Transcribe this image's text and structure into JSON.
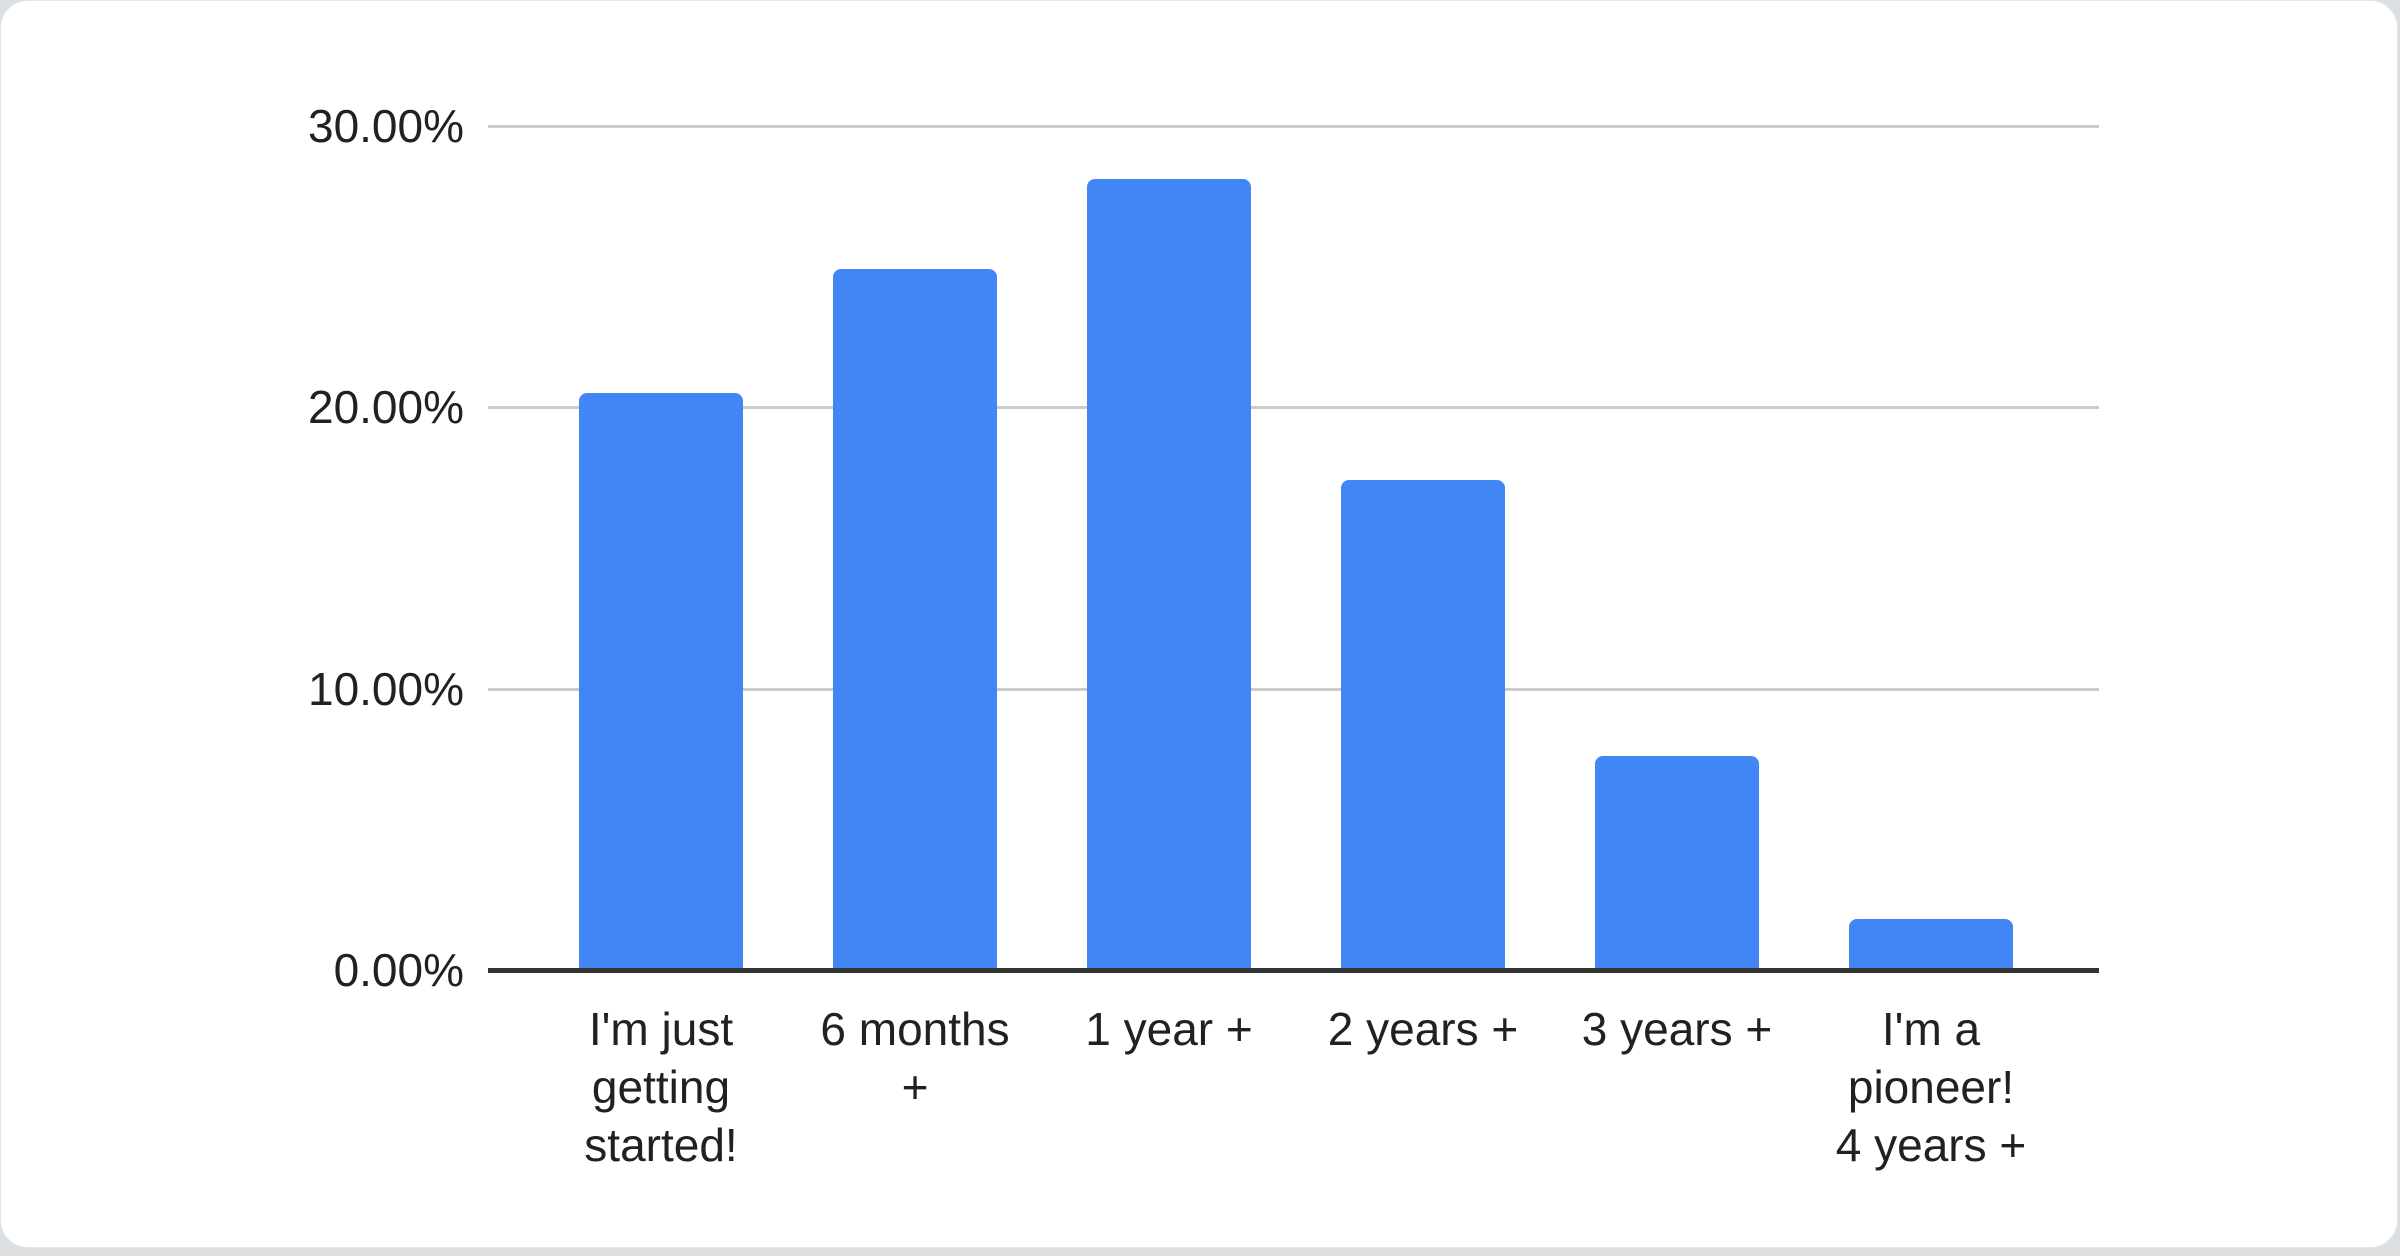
{
  "chart_data": {
    "type": "bar",
    "title": "",
    "xlabel": "",
    "ylabel": "",
    "categories": [
      "I'm just getting started!",
      "6 months +",
      "1 year +",
      "2 years +",
      "3 years +",
      "I'm a pioneer! 4 years +"
    ],
    "values": [
      20.5,
      24.9,
      28.1,
      17.4,
      7.6,
      1.8
    ],
    "unit": "percent",
    "xtick_display_labels": [
      "I'm just\ngetting\nstarted!",
      "6 months\n+",
      "1 year +",
      "2 years +",
      "3 years +",
      "I'm a\npioneer!\n4 years +"
    ],
    "ylim": [
      0,
      30
    ],
    "yticks": [
      0,
      10,
      20,
      30
    ],
    "ytick_labels": [
      "0.00%",
      "10.00%",
      "20.00%",
      "30.00%"
    ],
    "grid": true,
    "legend": "none",
    "colors": {
      "bar": "#4285F4",
      "gridline": "#cccccc",
      "axis_line": "#333333",
      "text": "#212121",
      "card_background": "#ffffff",
      "page_background": "#dbdfe2"
    }
  }
}
